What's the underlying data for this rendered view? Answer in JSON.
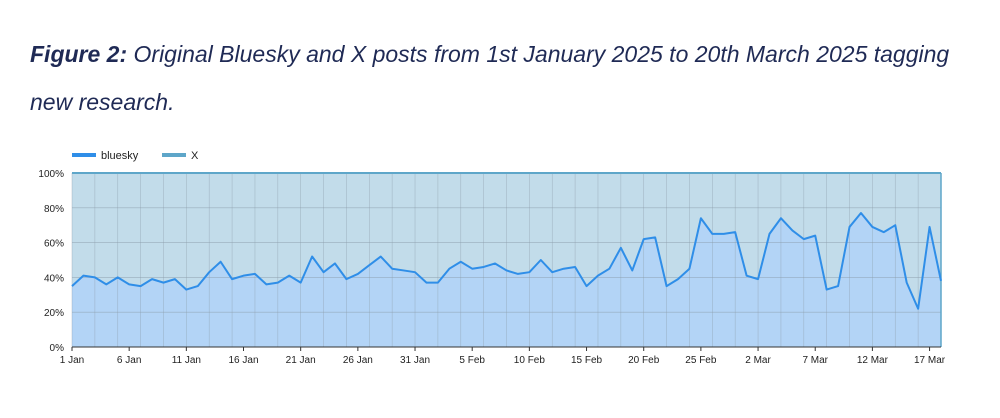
{
  "caption": {
    "label": "Figure 2:",
    "text": "Original Bluesky and X posts from 1st January 2025 to 20th March 2025 tagging new research."
  },
  "colors": {
    "bluesky_line": "#2f8ee8",
    "bluesky_fill": "#b3d4f6",
    "x_line": "#5ea6c9",
    "x_fill": "#c2dcea",
    "grid": "#8a9aa8",
    "caption": "#1f2a55"
  },
  "chart_data": {
    "type": "area",
    "stacked": "percent",
    "x_start": "1 Jan",
    "x_end": "20 Mar",
    "x_tick_labels": [
      "1 Jan",
      "6 Jan",
      "11 Jan",
      "16 Jan",
      "21 Jan",
      "26 Jan",
      "31 Jan",
      "5 Feb",
      "10 Feb",
      "15 Feb",
      "20 Feb",
      "25 Feb",
      "2 Mar",
      "7 Mar",
      "12 Mar",
      "17 Mar"
    ],
    "y_tick_labels": [
      "0%",
      "20%",
      "40%",
      "60%",
      "80%",
      "100%"
    ],
    "ylim": [
      0,
      100
    ],
    "grid": true,
    "legend_position": "top-left",
    "series": [
      {
        "name": "bluesky",
        "values": [
          35,
          41,
          40,
          36,
          40,
          36,
          35,
          39,
          37,
          39,
          33,
          35,
          43,
          49,
          39,
          41,
          42,
          36,
          37,
          41,
          37,
          52,
          43,
          48,
          39,
          42,
          47,
          52,
          45,
          44,
          43,
          37,
          37,
          45,
          49,
          45,
          46,
          48,
          44,
          42,
          43,
          50,
          43,
          45,
          46,
          35,
          41,
          45,
          57,
          44,
          62,
          63,
          35,
          39,
          45,
          74,
          65,
          65,
          66,
          41,
          39,
          65,
          74,
          67,
          62,
          64,
          33,
          35,
          69,
          77,
          69,
          66,
          70,
          37,
          22,
          69,
          38
        ]
      },
      {
        "name": "X",
        "values": [
          65,
          59,
          60,
          64,
          60,
          64,
          65,
          61,
          63,
          61,
          67,
          65,
          57,
          51,
          61,
          59,
          58,
          64,
          63,
          59,
          63,
          48,
          57,
          52,
          61,
          58,
          53,
          48,
          55,
          56,
          57,
          63,
          63,
          55,
          51,
          55,
          54,
          52,
          56,
          58,
          57,
          50,
          57,
          55,
          54,
          65,
          59,
          55,
          43,
          56,
          38,
          37,
          65,
          61,
          55,
          26,
          35,
          35,
          34,
          59,
          61,
          35,
          26,
          33,
          38,
          36,
          67,
          65,
          31,
          23,
          31,
          34,
          30,
          63,
          78,
          31,
          62
        ]
      }
    ]
  }
}
